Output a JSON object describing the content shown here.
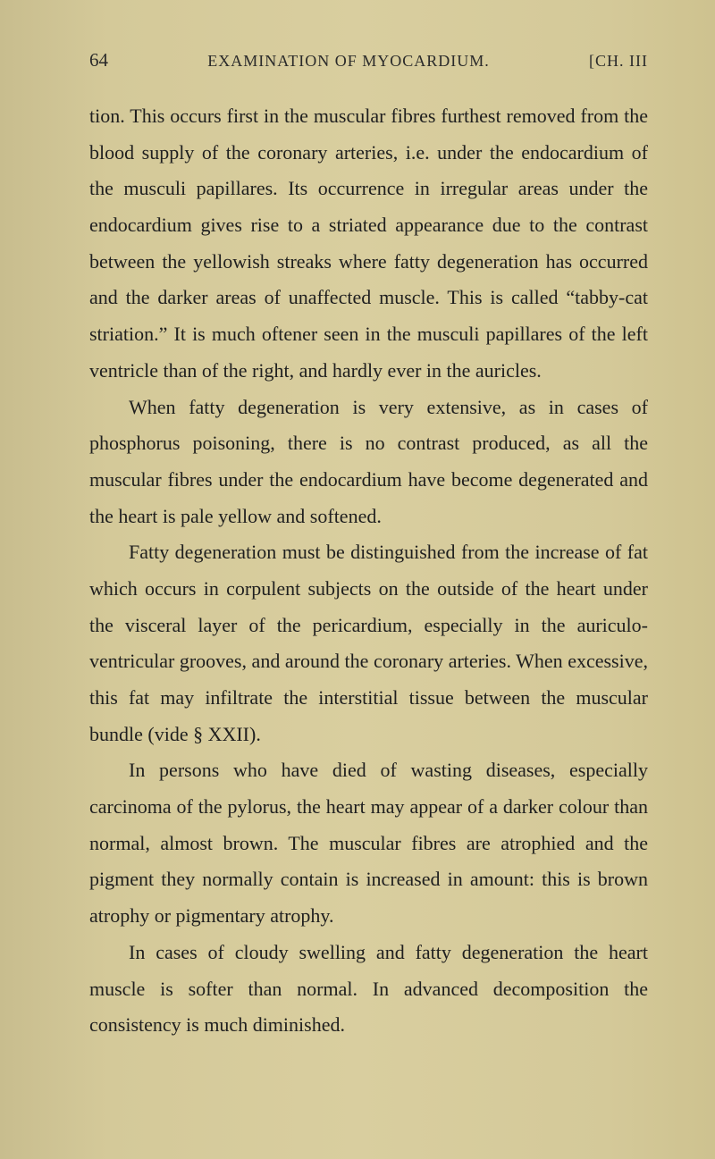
{
  "header": {
    "page_number": "64",
    "title": "EXAMINATION OF MYOCARDIUM.",
    "chapter": "[CH. III"
  },
  "paragraphs": {
    "p1": "tion. This occurs first in the muscular fibres furthest removed from the blood supply of the coronary arteries, i.e. under the endocardium of the musculi papillares. Its occurrence in irregular areas under the endocardium gives rise to a striated appearance due to the contrast between the yellowish streaks where fatty degeneration has oc­curred and the darker areas of unaffected muscle. This is called “tabby-cat striation.” It is much oftener seen in the musculi papillares of the left ventricle than of the right, and hardly ever in the auricles.",
    "p2": "When fatty degeneration is very extensive, as in cases of phosphorus poisoning, there is no contrast produced, as all the muscular fibres under the endocardium have become degenerated and the heart is pale yellow and softened.",
    "p3": "Fatty degeneration must be distinguished from the increase of fat which occurs in corpulent subjects on the outside of the heart under the visceral layer of the peri­cardium, especially in the auriculo-ventricular grooves, and around the coronary arteries. When excessive, this fat may infiltrate the interstitial tissue between the muscular bundle (vide § XXII).",
    "p4": "In persons who have died of wasting diseases, especially carcinoma of the pylorus, the heart may appear of a darker colour than normal, almost brown. The muscular fibres are atrophied and the pigment they normally contain is in­creased in amount: this is brown atrophy or pigmentary atrophy.",
    "p5": "In cases of cloudy swelling and fatty degeneration the heart muscle is softer than normal. In advanced decom­position the consistency is much diminished."
  }
}
